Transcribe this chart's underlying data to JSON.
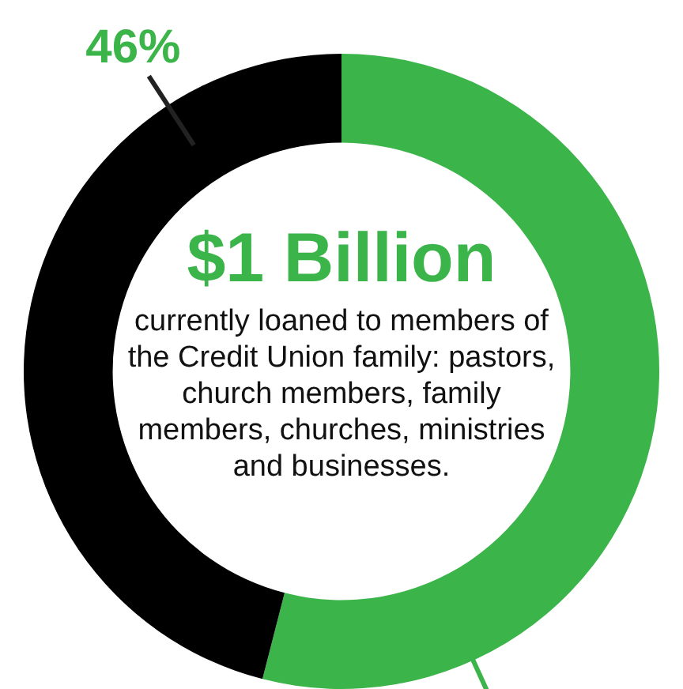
{
  "chart_data": {
    "type": "donut",
    "title": "$1 Billion",
    "subtitle": "currently loaned to members of the Credit Union family: pastors, church members, family members, churches, ministries and businesses.",
    "categories": [
      null,
      null
    ],
    "values": [
      54,
      46
    ],
    "colors": [
      "#3bb44a",
      "#000000"
    ],
    "value_labels": [
      null,
      "46%"
    ],
    "legend": false
  }
}
